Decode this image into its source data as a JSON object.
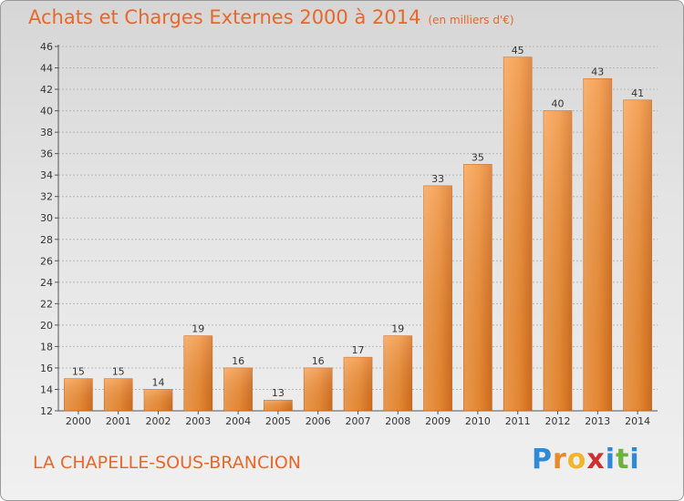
{
  "header": {
    "title": "Achats et Charges Externes 2000 à 2014",
    "subtitle": "(en milliers d'€)"
  },
  "footer": {
    "commune": "LA CHAPELLE-SOUS-BRANCION",
    "logo_letters": [
      "P",
      "r",
      "o",
      "x",
      "i",
      "t",
      "i"
    ]
  },
  "colors": {
    "accent": "#e8672a",
    "bar": "#f0892e",
    "bar_light": "#f8a458",
    "bar_dark": "#d9701f"
  },
  "chart_data": {
    "type": "bar",
    "title": "Achats et Charges Externes 2000 à 2014",
    "subtitle": "(en milliers d'€)",
    "xlabel": "",
    "ylabel": "",
    "categories": [
      "2000",
      "2001",
      "2002",
      "2003",
      "2004",
      "2005",
      "2006",
      "2007",
      "2008",
      "2009",
      "2010",
      "2011",
      "2012",
      "2013",
      "2014"
    ],
    "values": [
      15,
      15,
      14,
      19,
      16,
      13,
      16,
      17,
      19,
      33,
      35,
      45,
      40,
      43,
      41
    ],
    "ylim": [
      12,
      46
    ],
    "yticks": [
      12,
      14,
      16,
      18,
      20,
      22,
      24,
      26,
      28,
      30,
      32,
      34,
      36,
      38,
      40,
      42,
      44,
      46
    ],
    "grid": "horizontal dashed",
    "legend": "none"
  }
}
